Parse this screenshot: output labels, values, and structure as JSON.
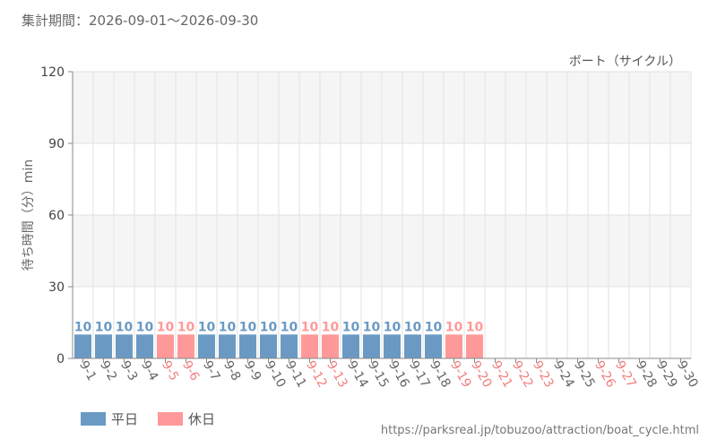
{
  "header": {
    "period": "集計期間：2026-09-01〜2026-09-30"
  },
  "colors": {
    "weekday": "#6a9ac4",
    "holiday": "#ff9999",
    "weekday_label": "#666666",
    "holiday_label": "#f07f7f"
  },
  "chart_data": {
    "type": "bar",
    "title": "ボート（サイクル）",
    "ylabel": "待ち時間（分）min",
    "ylim": [
      0,
      120
    ],
    "yticks": [
      0,
      30,
      60,
      90,
      120
    ],
    "grid": true,
    "categories": [
      "9-1",
      "9-2",
      "9-3",
      "9-4",
      "9-5",
      "9-6",
      "9-7",
      "9-8",
      "9-9",
      "9-10",
      "9-11",
      "9-12",
      "9-13",
      "9-14",
      "9-15",
      "9-16",
      "9-17",
      "9-18",
      "9-19",
      "9-20",
      "9-21",
      "9-22",
      "9-23",
      "9-24",
      "9-25",
      "9-26",
      "9-27",
      "9-28",
      "9-29",
      "9-30"
    ],
    "day_type": [
      "weekday",
      "weekday",
      "weekday",
      "weekday",
      "holiday",
      "holiday",
      "weekday",
      "weekday",
      "weekday",
      "weekday",
      "weekday",
      "holiday",
      "holiday",
      "weekday",
      "weekday",
      "weekday",
      "weekday",
      "weekday",
      "holiday",
      "holiday",
      "holiday",
      "holiday",
      "holiday",
      "weekday",
      "weekday",
      "holiday",
      "holiday",
      "weekday",
      "weekday",
      "weekday"
    ],
    "values": [
      10,
      10,
      10,
      10,
      10,
      10,
      10,
      10,
      10,
      10,
      10,
      10,
      10,
      10,
      10,
      10,
      10,
      10,
      10,
      10,
      null,
      null,
      null,
      null,
      null,
      null,
      null,
      null,
      null,
      null
    ],
    "series": [
      {
        "name": "平日",
        "color_key": "weekday"
      },
      {
        "name": "休日",
        "color_key": "holiday"
      }
    ],
    "legend_position": "bottom-left"
  },
  "footer": {
    "url": "https://parksreal.jp/tobuzoo/attraction/boat_cycle.html"
  }
}
